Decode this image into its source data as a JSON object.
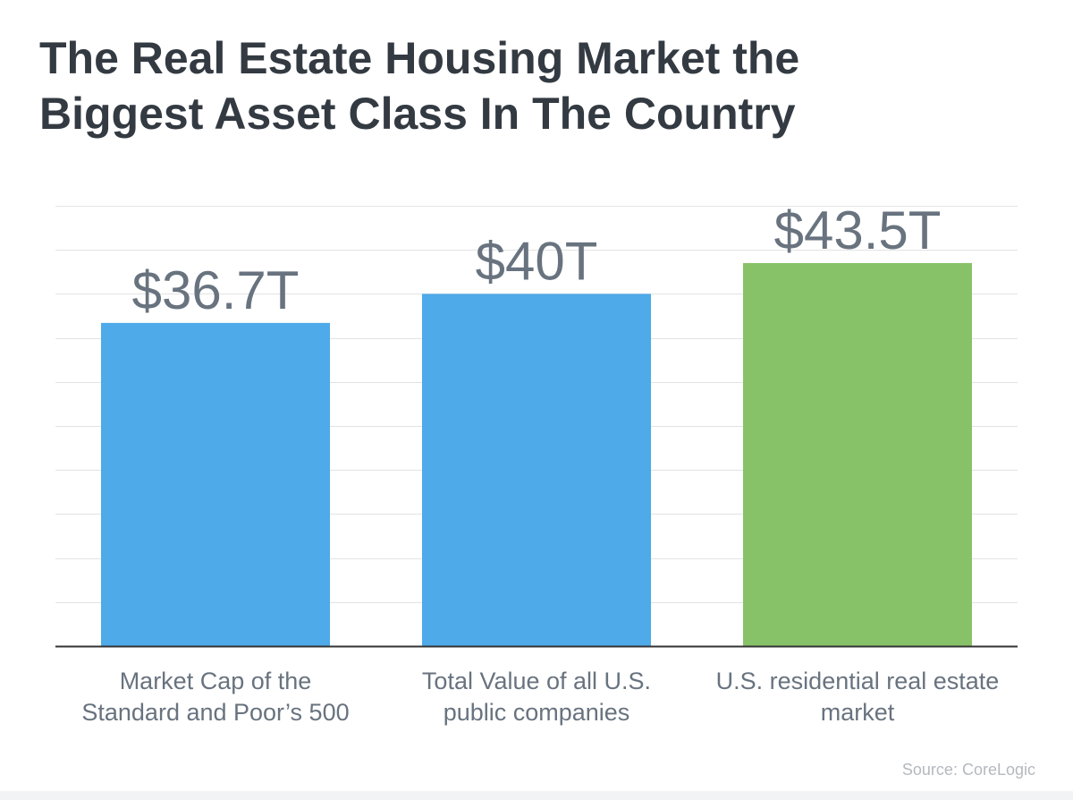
{
  "title_lines": [
    "The Real Estate Housing Market the",
    "Biggest Asset Class In The Country"
  ],
  "source": "Source: CoreLogic",
  "colors": {
    "blue": "#4eaae8",
    "green": "#88c268",
    "value_label": "#68737f",
    "category_label": "#68737f",
    "grid": "#e3e3e3",
    "axis": "#333333"
  },
  "chart_data": {
    "type": "bar",
    "title": "The Real Estate Housing Market the Biggest Asset Class In The Country",
    "categories": [
      [
        "Market Cap of the",
        "Standard and Poor’s 500"
      ],
      [
        "Total Value of all U.S.",
        "public companies"
      ],
      [
        "U.S. residential real estate",
        "market"
      ]
    ],
    "values": [
      36.7,
      40,
      43.5
    ],
    "value_labels": [
      "$36.7T",
      "$40T",
      "$43.5T"
    ],
    "bar_colors": [
      "#4eaae8",
      "#4eaae8",
      "#88c268"
    ],
    "ylim": [
      0,
      50
    ],
    "grid": true,
    "xlabel": "",
    "ylabel": ""
  }
}
